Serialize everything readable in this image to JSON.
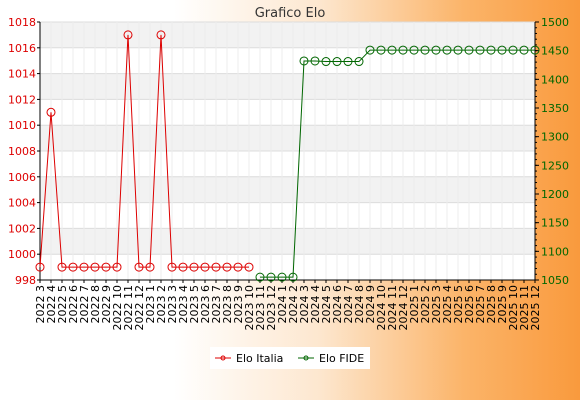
{
  "chart_data": {
    "type": "line",
    "title": "Grafico Elo",
    "categories": [
      "2022 3",
      "2022 4",
      "2022 5",
      "2022 6",
      "2022 7",
      "2022 8",
      "2022 9",
      "2022 10",
      "2022 11",
      "2022 12",
      "2023 1",
      "2023 2",
      "2023 3",
      "2023 4",
      "2023 5",
      "2023 6",
      "2023 7",
      "2023 8",
      "2023 9",
      "2023 10",
      "2023 11",
      "2023 12",
      "2024 1",
      "2024 2",
      "2024 3",
      "2024 4",
      "2024 5",
      "2024 6",
      "2024 7",
      "2024 8",
      "2024 9",
      "2024 10",
      "2024 11",
      "2024 12",
      "2025 1",
      "2025 2",
      "2025 3",
      "2025 4",
      "2025 5",
      "2025 6",
      "2025 7",
      "2025 8",
      "2025 9",
      "2025 10",
      "2025 11",
      "2025 12"
    ],
    "left_axis": {
      "min": 998,
      "max": 1018,
      "step": 2
    },
    "right_axis": {
      "min": 1050,
      "max": 1500,
      "step": 50
    },
    "grid": true,
    "legend_position": "bottom",
    "series": [
      {
        "name": "Elo Italia",
        "axis": "left",
        "color": "#dd0000",
        "values": [
          999,
          1011,
          999,
          999,
          999,
          999,
          999,
          999,
          1017,
          999,
          999,
          1017,
          999,
          999,
          999,
          999,
          999,
          999,
          999,
          999,
          null,
          null,
          null,
          null,
          null,
          null,
          null,
          null,
          null,
          null,
          null,
          null,
          null,
          null,
          null,
          null,
          null,
          null,
          null,
          null,
          null,
          null,
          null,
          null,
          null,
          null
        ]
      },
      {
        "name": "Elo FIDE",
        "axis": "right",
        "color": "#006600",
        "values": [
          null,
          null,
          null,
          null,
          null,
          null,
          null,
          null,
          null,
          null,
          null,
          null,
          null,
          null,
          null,
          null,
          null,
          null,
          null,
          null,
          1055,
          1055,
          1055,
          1055,
          1432,
          1432,
          1431,
          1431,
          1431,
          1431,
          1451,
          1451,
          1451,
          1451,
          1451,
          1451,
          1451,
          1451,
          1451,
          1451,
          1451,
          1451,
          1451,
          1451,
          1451,
          1451
        ]
      }
    ]
  }
}
